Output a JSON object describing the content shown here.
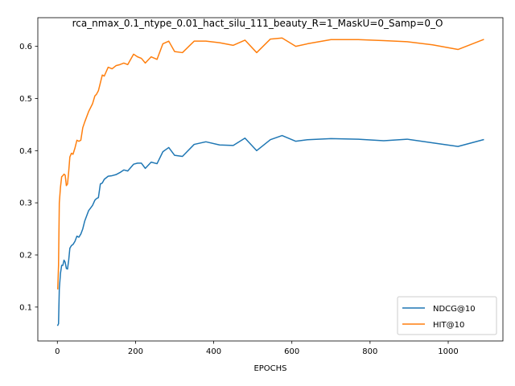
{
  "chart_data": {
    "type": "line",
    "title": "rca_nmax_0.1_ntype_0.01_hact_silu_111_beauty_R=1_MaskU=0_Samp=0_O",
    "xlabel": "EPOCHS",
    "ylabel": "",
    "xlim": [
      -50,
      1140
    ],
    "ylim": [
      0.035,
      0.655
    ],
    "xticks": [
      0,
      200,
      400,
      600,
      800,
      1000
    ],
    "yticks": [
      0.1,
      0.2,
      0.3,
      0.4,
      0.5,
      0.6
    ],
    "grid": false,
    "legend_position": "lower-right",
    "series": [
      {
        "name": "NDCG@10",
        "color": "#1f77b4",
        "x": [
          1,
          3,
          5,
          8,
          11,
          14,
          17,
          20,
          23,
          26,
          29,
          32,
          36,
          40,
          45,
          50,
          55,
          60,
          65,
          70,
          80,
          90,
          96,
          100,
          105,
          110,
          115,
          120,
          130,
          140,
          150,
          160,
          170,
          180,
          195,
          205,
          215,
          225,
          240,
          255,
          270,
          285,
          300,
          320,
          350,
          380,
          415,
          450,
          480,
          510,
          545,
          575,
          610,
          640,
          700,
          770,
          835,
          895,
          960,
          1025,
          1090
        ],
        "y": [
          0.065,
          0.068,
          0.135,
          0.165,
          0.18,
          0.18,
          0.19,
          0.186,
          0.174,
          0.173,
          0.19,
          0.213,
          0.218,
          0.22,
          0.226,
          0.236,
          0.234,
          0.24,
          0.25,
          0.265,
          0.285,
          0.295,
          0.305,
          0.308,
          0.31,
          0.336,
          0.338,
          0.345,
          0.351,
          0.352,
          0.354,
          0.358,
          0.363,
          0.361,
          0.374,
          0.376,
          0.376,
          0.366,
          0.378,
          0.375,
          0.398,
          0.406,
          0.391,
          0.389,
          0.412,
          0.417,
          0.411,
          0.41,
          0.424,
          0.4,
          0.421,
          0.429,
          0.418,
          0.421,
          0.423,
          0.422,
          0.419,
          0.422,
          0.415,
          0.408,
          0.421
        ]
      },
      {
        "name": "HIT@10",
        "color": "#ff7f0e",
        "x": [
          1,
          3,
          5,
          8,
          11,
          14,
          17,
          20,
          23,
          26,
          29,
          32,
          36,
          40,
          45,
          50,
          55,
          60,
          65,
          70,
          80,
          90,
          96,
          100,
          105,
          110,
          115,
          120,
          130,
          140,
          150,
          160,
          170,
          180,
          195,
          205,
          215,
          225,
          240,
          255,
          270,
          285,
          300,
          320,
          350,
          380,
          415,
          450,
          480,
          510,
          545,
          575,
          610,
          640,
          700,
          770,
          835,
          895,
          960,
          1025,
          1090
        ],
        "y": [
          0.135,
          0.18,
          0.3,
          0.33,
          0.35,
          0.352,
          0.355,
          0.353,
          0.333,
          0.336,
          0.36,
          0.388,
          0.395,
          0.393,
          0.405,
          0.42,
          0.418,
          0.42,
          0.444,
          0.455,
          0.475,
          0.49,
          0.505,
          0.508,
          0.515,
          0.53,
          0.545,
          0.543,
          0.56,
          0.557,
          0.563,
          0.565,
          0.568,
          0.565,
          0.585,
          0.58,
          0.577,
          0.568,
          0.58,
          0.575,
          0.605,
          0.61,
          0.59,
          0.588,
          0.61,
          0.61,
          0.607,
          0.602,
          0.612,
          0.588,
          0.614,
          0.616,
          0.6,
          0.605,
          0.613,
          0.613,
          0.611,
          0.609,
          0.603,
          0.594,
          0.613
        ]
      }
    ]
  }
}
